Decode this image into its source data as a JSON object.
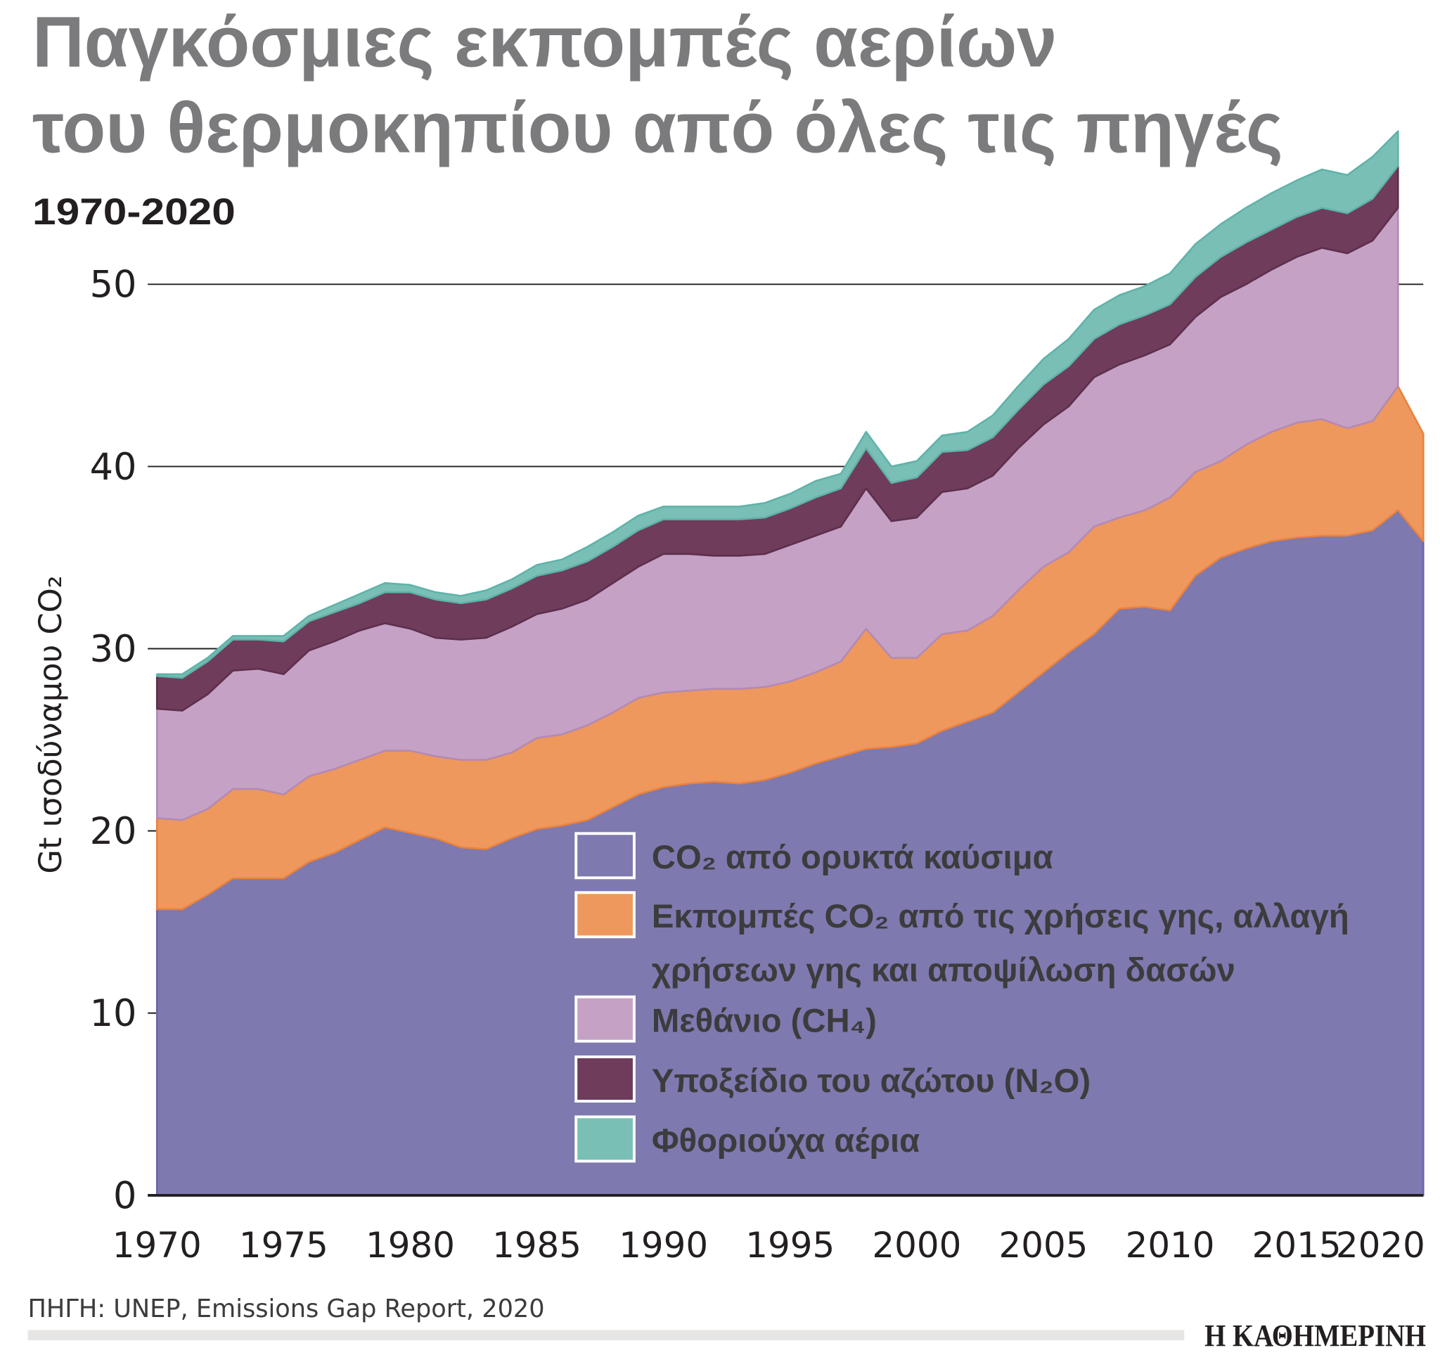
{
  "title_line1": "Παγκόσμιες εκπομπές αερίων",
  "title_line2": "του θερμοκηπίου από όλες τις πηγές",
  "subtitle": "1970-2020",
  "source": "ΠΗΓΗ: UNEP, Emissions Gap Report, 2020",
  "logo": "Η ΚΑΘΗΜΕΡΙΝΗ",
  "chart_data": {
    "type": "area",
    "stacked": true,
    "ylabel": "Gt ισοδύναμου CO₂",
    "xlabel": "",
    "ylim": [
      0,
      58
    ],
    "xlim": [
      1970,
      2020
    ],
    "yticks": [
      0,
      10,
      20,
      30,
      40,
      50
    ],
    "xticks": [
      1970,
      1975,
      1980,
      1985,
      1990,
      1995,
      2000,
      2005,
      2010,
      2015,
      2020
    ],
    "grid": "horizontal",
    "legend_position": "bottom-right",
    "x": [
      1970,
      1971,
      1972,
      1973,
      1974,
      1975,
      1976,
      1977,
      1978,
      1979,
      1980,
      1981,
      1982,
      1983,
      1984,
      1985,
      1986,
      1987,
      1988,
      1989,
      1990,
      1991,
      1992,
      1993,
      1994,
      1995,
      1996,
      1997,
      1998,
      1999,
      2000,
      2001,
      2002,
      2003,
      2004,
      2005,
      2006,
      2007,
      2008,
      2009,
      2010,
      2011,
      2012,
      2013,
      2014,
      2015,
      2016,
      2017,
      2018,
      2019,
      2020
    ],
    "series": [
      {
        "name": "CO₂ από ορυκτά καύσιμα",
        "color": "#7e79ae",
        "values": [
          15.7,
          15.7,
          16.5,
          17.4,
          17.4,
          17.4,
          18.3,
          18.8,
          19.5,
          20.2,
          19.9,
          19.6,
          19.1,
          19.0,
          19.6,
          20.1,
          20.3,
          20.6,
          21.3,
          22.0,
          22.4,
          22.6,
          22.7,
          22.6,
          22.8,
          23.2,
          23.7,
          24.1,
          24.5,
          24.6,
          24.8,
          25.5,
          26.0,
          26.5,
          27.6,
          28.7,
          29.8,
          30.8,
          32.2,
          32.3,
          32.1,
          34.0,
          35.0,
          35.5,
          35.9,
          36.1,
          36.2,
          36.2,
          36.5,
          37.6,
          35.9
        ]
      },
      {
        "name": "Εκπομπές CO₂ από τις χρήσεις γης, αλλαγή χρήσεων γης και αποψίλωση δασών",
        "color": "#ee985e",
        "legend_lines": [
          "Εκπομπές CO₂ από τις χρήσεις γης, αλλαγή",
          "χρήσεων γης και αποψίλωση δασών"
        ],
        "values": [
          5.0,
          4.9,
          4.7,
          4.9,
          4.9,
          4.6,
          4.7,
          4.6,
          4.4,
          4.2,
          4.5,
          4.5,
          4.8,
          4.9,
          4.7,
          5.0,
          5.0,
          5.2,
          5.2,
          5.3,
          5.2,
          5.1,
          5.1,
          5.2,
          5.1,
          5.0,
          5.0,
          5.2,
          6.6,
          4.9,
          4.7,
          5.3,
          5.0,
          5.3,
          5.6,
          5.8,
          5.5,
          5.9,
          5.0,
          5.3,
          6.2,
          5.7,
          5.3,
          5.7,
          6.0,
          6.3,
          6.4,
          5.9,
          6.0,
          6.8,
          5.9
        ]
      },
      {
        "name": "Μεθάνιο (CH₄)",
        "color": "#c5a2c5",
        "values": [
          6.0,
          6.0,
          6.3,
          6.5,
          6.6,
          6.6,
          6.9,
          7.0,
          7.1,
          7.0,
          6.7,
          6.5,
          6.6,
          6.7,
          6.9,
          6.8,
          6.9,
          6.9,
          7.1,
          7.2,
          7.6,
          7.5,
          7.3,
          7.3,
          7.3,
          7.5,
          7.5,
          7.4,
          7.7,
          7.5,
          7.7,
          7.8,
          7.8,
          7.7,
          7.8,
          7.8,
          8.0,
          8.2,
          8.4,
          8.5,
          8.4,
          8.5,
          9.0,
          8.8,
          8.9,
          9.1,
          9.4,
          9.6,
          9.9,
          9.8,
          null
        ]
      },
      {
        "name": "Υποξείδιο του αζώτου (N₂O)",
        "color": "#6f3c5c",
        "values": [
          1.8,
          1.8,
          1.8,
          1.7,
          1.6,
          1.8,
          1.6,
          1.6,
          1.5,
          1.7,
          2.0,
          2.1,
          2.0,
          2.1,
          2.1,
          2.1,
          2.1,
          2.1,
          2.0,
          2.0,
          1.9,
          1.9,
          2.0,
          2.0,
          2.0,
          2.0,
          2.1,
          2.1,
          2.2,
          2.1,
          2.2,
          2.2,
          2.1,
          2.1,
          2.1,
          2.2,
          2.2,
          2.1,
          2.2,
          2.2,
          2.2,
          2.2,
          2.2,
          2.3,
          2.2,
          2.2,
          2.2,
          2.2,
          2.3,
          2.3,
          null
        ]
      },
      {
        "name": "Φθοριούχα αέρια",
        "color": "#7abfb6",
        "values": [
          0.1,
          0.2,
          0.2,
          0.2,
          0.2,
          0.3,
          0.3,
          0.4,
          0.5,
          0.5,
          0.4,
          0.4,
          0.4,
          0.5,
          0.5,
          0.6,
          0.6,
          0.8,
          0.8,
          0.8,
          0.7,
          0.7,
          0.7,
          0.7,
          0.8,
          0.8,
          0.9,
          0.8,
          0.9,
          0.9,
          0.9,
          0.9,
          1.0,
          1.2,
          1.3,
          1.4,
          1.5,
          1.6,
          1.6,
          1.6,
          1.7,
          1.8,
          1.8,
          1.9,
          2.0,
          2.0,
          2.1,
          2.1,
          2.3,
          1.9,
          null
        ]
      }
    ]
  }
}
